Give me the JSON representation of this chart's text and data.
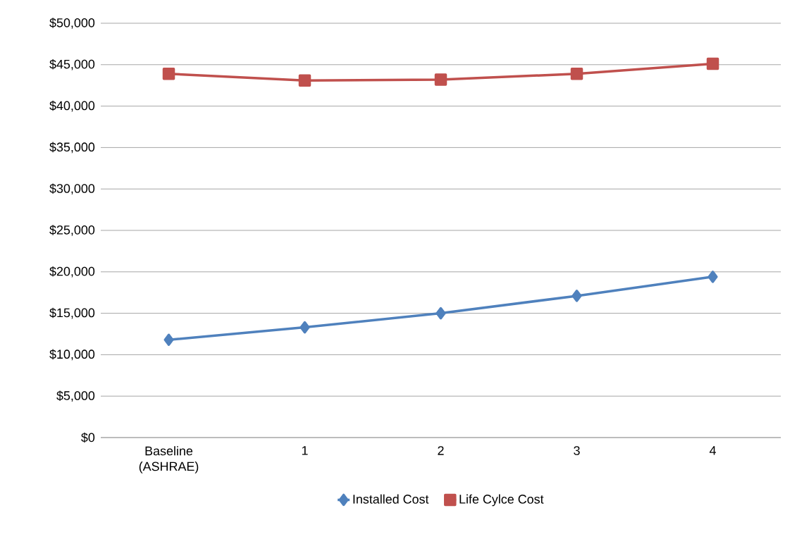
{
  "chart_data": {
    "type": "line",
    "categories": [
      "Baseline (ASHRAE)",
      "1",
      "2",
      "3",
      "4"
    ],
    "series": [
      {
        "name": "Installed Cost",
        "color": "#4f81bd",
        "marker": "diamond",
        "values": [
          11800,
          13300,
          15000,
          17100,
          19400
        ]
      },
      {
        "name": "Life Cylce Cost",
        "color": "#c0504d",
        "marker": "square",
        "values": [
          43900,
          43100,
          43200,
          43900,
          45100
        ]
      }
    ],
    "ylim": [
      0,
      50000
    ],
    "yticks": [
      {
        "value": 0,
        "label": "$0"
      },
      {
        "value": 5000,
        "label": "$5,000"
      },
      {
        "value": 10000,
        "label": "$10,000"
      },
      {
        "value": 15000,
        "label": "$15,000"
      },
      {
        "value": 20000,
        "label": "$20,000"
      },
      {
        "value": 25000,
        "label": "$25,000"
      },
      {
        "value": 30000,
        "label": "$30,000"
      },
      {
        "value": 35000,
        "label": "$35,000"
      },
      {
        "value": 40000,
        "label": "$40,000"
      },
      {
        "value": 45000,
        "label": "$45,000"
      },
      {
        "value": 50000,
        "label": "$50,000"
      }
    ],
    "grid": "y",
    "legend": "bottom",
    "line_style": "solid"
  }
}
